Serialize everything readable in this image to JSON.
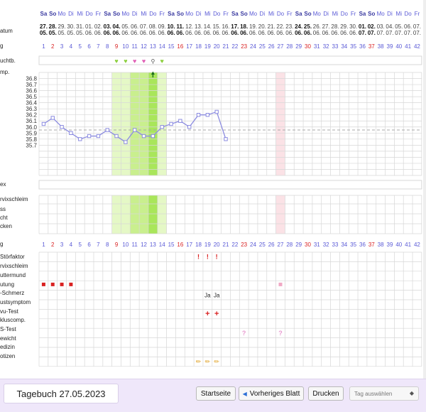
{
  "weekday_labels": [
    "Sa",
    "So",
    "Mo",
    "Di",
    "Mi",
    "Do",
    "Fr",
    "Sa",
    "So",
    "Mo",
    "Di",
    "Mi",
    "Do",
    "Fr",
    "Sa",
    "So",
    "Mo",
    "Di",
    "Mi",
    "Do",
    "Fr",
    "Sa",
    "So",
    "Mo",
    "Di",
    "Mi",
    "Do",
    "Fr",
    "Sa",
    "So",
    "Mo",
    "Di",
    "Mi",
    "Do",
    "Fr",
    "Sa",
    "So",
    "Mo",
    "Di",
    "Mi",
    "Do",
    "Fr"
  ],
  "date_days": [
    "27.",
    "28.",
    "29.",
    "30.",
    "31.",
    "01.",
    "02.",
    "03.",
    "04.",
    "05.",
    "06.",
    "07.",
    "08.",
    "09.",
    "10.",
    "11.",
    "12.",
    "13.",
    "14.",
    "15.",
    "16.",
    "17.",
    "18.",
    "19.",
    "20.",
    "21.",
    "22.",
    "23.",
    "24.",
    "25.",
    "26.",
    "27.",
    "28.",
    "29.",
    "30.",
    "01.",
    "02.",
    "03.",
    "04.",
    "05.",
    "06.",
    "07."
  ],
  "date_months": [
    "05.",
    "05.",
    "05.",
    "05.",
    "05.",
    "06.",
    "06.",
    "06.",
    "06.",
    "06.",
    "06.",
    "06.",
    "06.",
    "06.",
    "06.",
    "06.",
    "06.",
    "06.",
    "06.",
    "06.",
    "06.",
    "06.",
    "06.",
    "06.",
    "06.",
    "06.",
    "06.",
    "06.",
    "06.",
    "06.",
    "06.",
    "06.",
    "06.",
    "06.",
    "06.",
    "07.",
    "07.",
    "07.",
    "07.",
    "07.",
    "07.",
    "07."
  ],
  "cycle_days": [
    1,
    2,
    3,
    4,
    5,
    6,
    7,
    8,
    9,
    10,
    11,
    12,
    13,
    14,
    15,
    16,
    17,
    18,
    19,
    20,
    21,
    22,
    23,
    24,
    25,
    26,
    27,
    28,
    29,
    30,
    31,
    32,
    33,
    34,
    35,
    36,
    37,
    38,
    39,
    40,
    41,
    42
  ],
  "row_labels": {
    "datum": "atum",
    "zyklustag": "g",
    "tagebuch": "uchtb.",
    "temp": "mp.",
    "sex": "ex",
    "zervixschleim": "rvixschleim",
    "zs1": "ss",
    "zs2": "cht",
    "zs3": "cken",
    "zyklustag2": "g",
    "stoerfaktor": "Störfaktor",
    "zervixschleim2": "rvixschleim",
    "muttermund": "uttermund",
    "blutung": "utung",
    "mittelschmerz": "-Schmerz",
    "brustsymptom": "ustsymptom",
    "ovutest": "vu-Test",
    "zykluscomp": "kluscomp.",
    "ss_test": "S-Test",
    "gewicht": "ewicht",
    "medizin": "edizin",
    "notizen": "otizen"
  },
  "temp_scale": [
    "36.8",
    "36.7",
    "36.6",
    "36.5",
    "36.4",
    "36.3",
    "36.2",
    "36.1",
    "36.0",
    "35.9",
    "35.8",
    "35.7"
  ],
  "coverline": 35.95,
  "temperature_series": [
    {
      "day": 1,
      "temp": 36.05
    },
    {
      "day": 2,
      "temp": 36.15
    },
    {
      "day": 3,
      "temp": 36.0
    },
    {
      "day": 4,
      "temp": 35.9
    },
    {
      "day": 5,
      "temp": 35.8
    },
    {
      "day": 6,
      "temp": 35.85
    },
    {
      "day": 7,
      "temp": 35.85
    },
    {
      "day": 8,
      "temp": 35.95
    },
    {
      "day": 9,
      "temp": 35.85
    },
    {
      "day": 10,
      "temp": 35.75
    },
    {
      "day": 11,
      "temp": 35.95
    },
    {
      "day": 12,
      "temp": 35.85
    },
    {
      "day": 13,
      "temp": 35.85
    },
    {
      "day": 14,
      "temp": 36.0
    },
    {
      "day": 15,
      "temp": 36.05
    },
    {
      "day": 16,
      "temp": 36.1
    },
    {
      "day": 17,
      "temp": 36.0
    },
    {
      "day": 18,
      "temp": 36.2
    },
    {
      "day": 19,
      "temp": 36.2
    },
    {
      "day": 20,
      "temp": 36.25
    },
    {
      "day": 21,
      "temp": 35.8
    }
  ],
  "fertile_shading": [
    {
      "day": 9,
      "level": 1
    },
    {
      "day": 10,
      "level": 1
    },
    {
      "day": 11,
      "level": 2
    },
    {
      "day": 12,
      "level": 2
    },
    {
      "day": 13,
      "level": 3
    },
    {
      "day": 14,
      "level": 1
    }
  ],
  "expected_period_day": 27,
  "ovulation_day": 13,
  "diary_hearts": [
    {
      "day": 9,
      "color": "#8ccf3e"
    },
    {
      "day": 10,
      "color": "#8ccf3e"
    },
    {
      "day": 11,
      "color": "#e05fb5"
    },
    {
      "day": 12,
      "color": "#e05fb5"
    },
    {
      "day": 14,
      "color": "#8ccf3e"
    }
  ],
  "diary_key_day": 13,
  "markers": {
    "stoerfaktor": {
      "days": [
        18,
        19,
        20
      ],
      "symbol": "!",
      "color": "#d92222"
    },
    "blutung": {
      "days": [
        1,
        2,
        3,
        4
      ],
      "color": "#d92222"
    },
    "blutung_light": {
      "days": [
        27
      ],
      "color": "#f0a8c4"
    },
    "mittelschmerz": {
      "days": [
        19,
        20
      ],
      "text": "Ja"
    },
    "ovutest": {
      "days": [
        19,
        20
      ],
      "symbol": "+",
      "color": "#d92222"
    },
    "ss_test": {
      "days": [
        23,
        27
      ],
      "symbol": "?",
      "color": "#e89ad0"
    },
    "notizen": {
      "days": [
        18,
        19,
        20
      ],
      "symbol": "✏",
      "color": "#e0a020"
    }
  },
  "colors": {
    "weekday": "#5a5ad6",
    "weekend": "#3a3aa0",
    "sunday_red": "#d92222",
    "grid_line": "#d7d7d7",
    "curve": "#8c8ce0",
    "coverline": "#a8a8a8",
    "shade1": "#e5f8c6",
    "shade2": "#c9ef8e",
    "shade3": "#a9e65a",
    "period_pink": "#fbe2e6"
  },
  "footer": {
    "diary_title": "Tagebuch 27.05.2023",
    "home_button": "Startseite",
    "prev_button": "Vorheriges Blatt",
    "print_button": "Drucken",
    "day_select_placeholder": "Tag auswählen"
  }
}
